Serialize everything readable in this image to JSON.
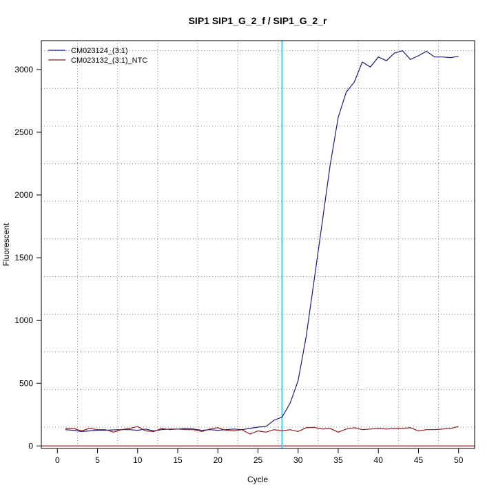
{
  "chart_data": {
    "type": "line",
    "title": "SIP1  SIP1_G_2_f / SIP1_G_2_r",
    "xlabel": "Cycle",
    "ylabel": "Fluorescent",
    "xlim": [
      -2,
      52
    ],
    "ylim": [
      -20,
      3230
    ],
    "x_ticks": [
      0,
      5,
      10,
      15,
      20,
      25,
      30,
      35,
      40,
      45,
      50
    ],
    "y_ticks": [
      0,
      500,
      1000,
      1500,
      2000,
      2500,
      3000
    ],
    "grid": true,
    "legend_position": "top-left",
    "threshold_cycle": 28,
    "baseline_value": 0,
    "x": [
      1,
      2,
      3,
      4,
      5,
      6,
      7,
      8,
      9,
      10,
      11,
      12,
      13,
      14,
      15,
      16,
      17,
      18,
      19,
      20,
      21,
      22,
      23,
      24,
      25,
      26,
      27,
      28,
      29,
      30,
      31,
      32,
      33,
      34,
      35,
      36,
      37,
      38,
      39,
      40,
      41,
      42,
      43,
      44,
      45,
      46,
      47,
      48,
      49,
      50
    ],
    "series": [
      {
        "name": "CM023124_(3:1)",
        "color": "#1a1a7a",
        "values": [
          130,
          125,
          115,
          120,
          125,
          125,
          128,
          130,
          130,
          125,
          135,
          120,
          130,
          135,
          135,
          140,
          135,
          125,
          130,
          125,
          130,
          135,
          130,
          140,
          150,
          155,
          205,
          230,
          340,
          520,
          870,
          1320,
          1780,
          2240,
          2620,
          2820,
          2900,
          3060,
          3020,
          3100,
          3070,
          3130,
          3150,
          3080,
          3110,
          3145,
          3100,
          3100,
          3095,
          3105
        ]
      },
      {
        "name": "CM023132_(3:1)_NTC",
        "color": "#8b1a1a",
        "values": [
          140,
          140,
          120,
          140,
          130,
          130,
          110,
          130,
          140,
          155,
          120,
          115,
          140,
          130,
          135,
          130,
          130,
          115,
          135,
          145,
          125,
          120,
          130,
          95,
          120,
          110,
          130,
          120,
          130,
          115,
          145,
          148,
          135,
          140,
          110,
          135,
          145,
          130,
          135,
          140,
          135,
          140,
          140,
          145,
          120,
          130,
          130,
          135,
          140,
          155
        ]
      }
    ]
  }
}
